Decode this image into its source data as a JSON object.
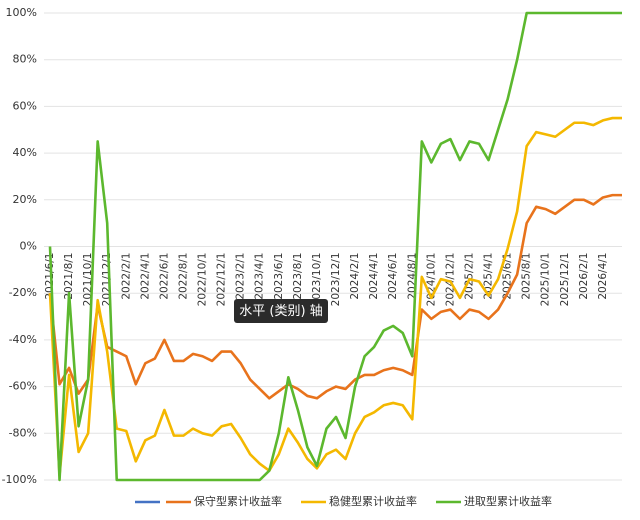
{
  "chart_data": {
    "type": "line",
    "tooltip": "水平 (类别) 轴",
    "categories": [
      "2021/6/1",
      null,
      "2021/8/1",
      null,
      "2021/10/1",
      null,
      "2021/12/1",
      null,
      "2022/2/1",
      null,
      "2022/4/1",
      null,
      "2022/6/1",
      null,
      "2022/8/1",
      null,
      "2022/10/1",
      null,
      "2022/12/1",
      null,
      "2023/2/1",
      null,
      "2023/4/1",
      null,
      "2023/6/1",
      null,
      "2023/8/1",
      null,
      "2023/10/1",
      null,
      "2023/12/1",
      null,
      "2024/2/1",
      null,
      "2024/4/1",
      null,
      "2024/6/1",
      null,
      "2024/8/1",
      null,
      "2024/10/1",
      null,
      "2024/12/1",
      null,
      "2025/2/1",
      null,
      "2025/4/1",
      null,
      "2025/6/1",
      null,
      "2025/8/1",
      null,
      "2025/10/1",
      null,
      "2025/12/1",
      null,
      "2026/2/1",
      null,
      "2026/4/1",
      null,
      null
    ],
    "ylim": [
      -100,
      100
    ],
    "yticks": [
      {
        "value": -100,
        "label": "-100%"
      },
      {
        "value": -80,
        "label": "-80%"
      },
      {
        "value": -60,
        "label": "-60%"
      },
      {
        "value": -40,
        "label": "-40%"
      },
      {
        "value": -20,
        "label": "-20%"
      },
      {
        "value": 0,
        "label": "0%"
      },
      {
        "value": 20,
        "label": "20%"
      },
      {
        "value": 40,
        "label": "40%"
      },
      {
        "value": 60,
        "label": "60%"
      },
      {
        "value": 80,
        "label": "80%"
      },
      {
        "value": 100,
        "label": "100%"
      }
    ],
    "grid": true,
    "legend": "bottom",
    "series": [
      {
        "color": "#4472c4",
        "values": [
          null,
          null,
          null,
          null,
          null,
          null,
          null,
          null,
          null,
          null,
          null,
          null,
          null,
          null,
          null,
          null,
          null,
          null,
          null,
          null,
          null,
          null,
          null,
          null,
          null,
          null,
          null,
          null,
          null,
          null,
          null,
          null,
          null,
          null,
          null,
          null,
          null,
          null,
          null,
          null,
          null,
          null,
          null,
          null,
          null,
          null,
          null,
          null,
          null,
          null,
          null,
          null,
          null,
          null,
          null,
          null,
          null,
          null,
          null,
          null,
          null
        ]
      },
      {
        "name": "保守型累计收益率",
        "color": "#e8731c",
        "values": [
          -20,
          -59,
          -52,
          -63,
          -57,
          -25,
          -43,
          -45,
          -47,
          -59,
          -50,
          -48,
          -40,
          -49,
          -49,
          -46,
          -47,
          -49,
          -45,
          -45,
          -50,
          -57,
          -61,
          -65,
          -62,
          -59,
          -61,
          -64,
          -65,
          -62,
          -60,
          -61,
          -57,
          -55,
          -55,
          -53,
          -52,
          -53,
          -55,
          -27,
          -31,
          -28,
          -27,
          -31,
          -27,
          -28,
          -31,
          -27,
          -20,
          -12,
          10,
          17,
          16,
          14,
          17,
          20,
          20,
          18,
          21,
          22,
          22
        ]
      },
      {
        "name": "稳健型累计收益率",
        "color": "#f4b800",
        "values": [
          -20,
          -98,
          -55,
          -88,
          -80,
          -23,
          -45,
          -78,
          -79,
          -92,
          -83,
          -81,
          -70,
          -81,
          -81,
          -78,
          -80,
          -81,
          -77,
          -76,
          -82,
          -89,
          -93,
          -96,
          -89,
          -78,
          -84,
          -91,
          -95,
          -89,
          -87,
          -91,
          -80,
          -73,
          -71,
          -68,
          -67,
          -68,
          -74,
          -13,
          -22,
          -14,
          -15,
          -22,
          -14,
          -15,
          -21,
          -14,
          -1,
          15,
          43,
          49,
          48,
          47,
          50,
          53,
          53,
          52,
          54,
          55,
          55
        ]
      },
      {
        "name": "进取型累计收益率",
        "color": "#5cb82e",
        "values": [
          0,
          -100,
          -20,
          -77,
          -57,
          45,
          10,
          -100,
          -100,
          -100,
          -100,
          -100,
          -100,
          -100,
          -100,
          -100,
          -100,
          -100,
          -100,
          -100,
          -100,
          -100,
          -100,
          -96,
          -80,
          -56,
          -70,
          -86,
          -94,
          -78,
          -73,
          -82,
          -60,
          -47,
          -43,
          -36,
          -34,
          -37,
          -47,
          45,
          36,
          44,
          46,
          37,
          45,
          44,
          37,
          50,
          63,
          80,
          100,
          100,
          100,
          100,
          100,
          100,
          100,
          100,
          100,
          100,
          100
        ]
      }
    ]
  }
}
